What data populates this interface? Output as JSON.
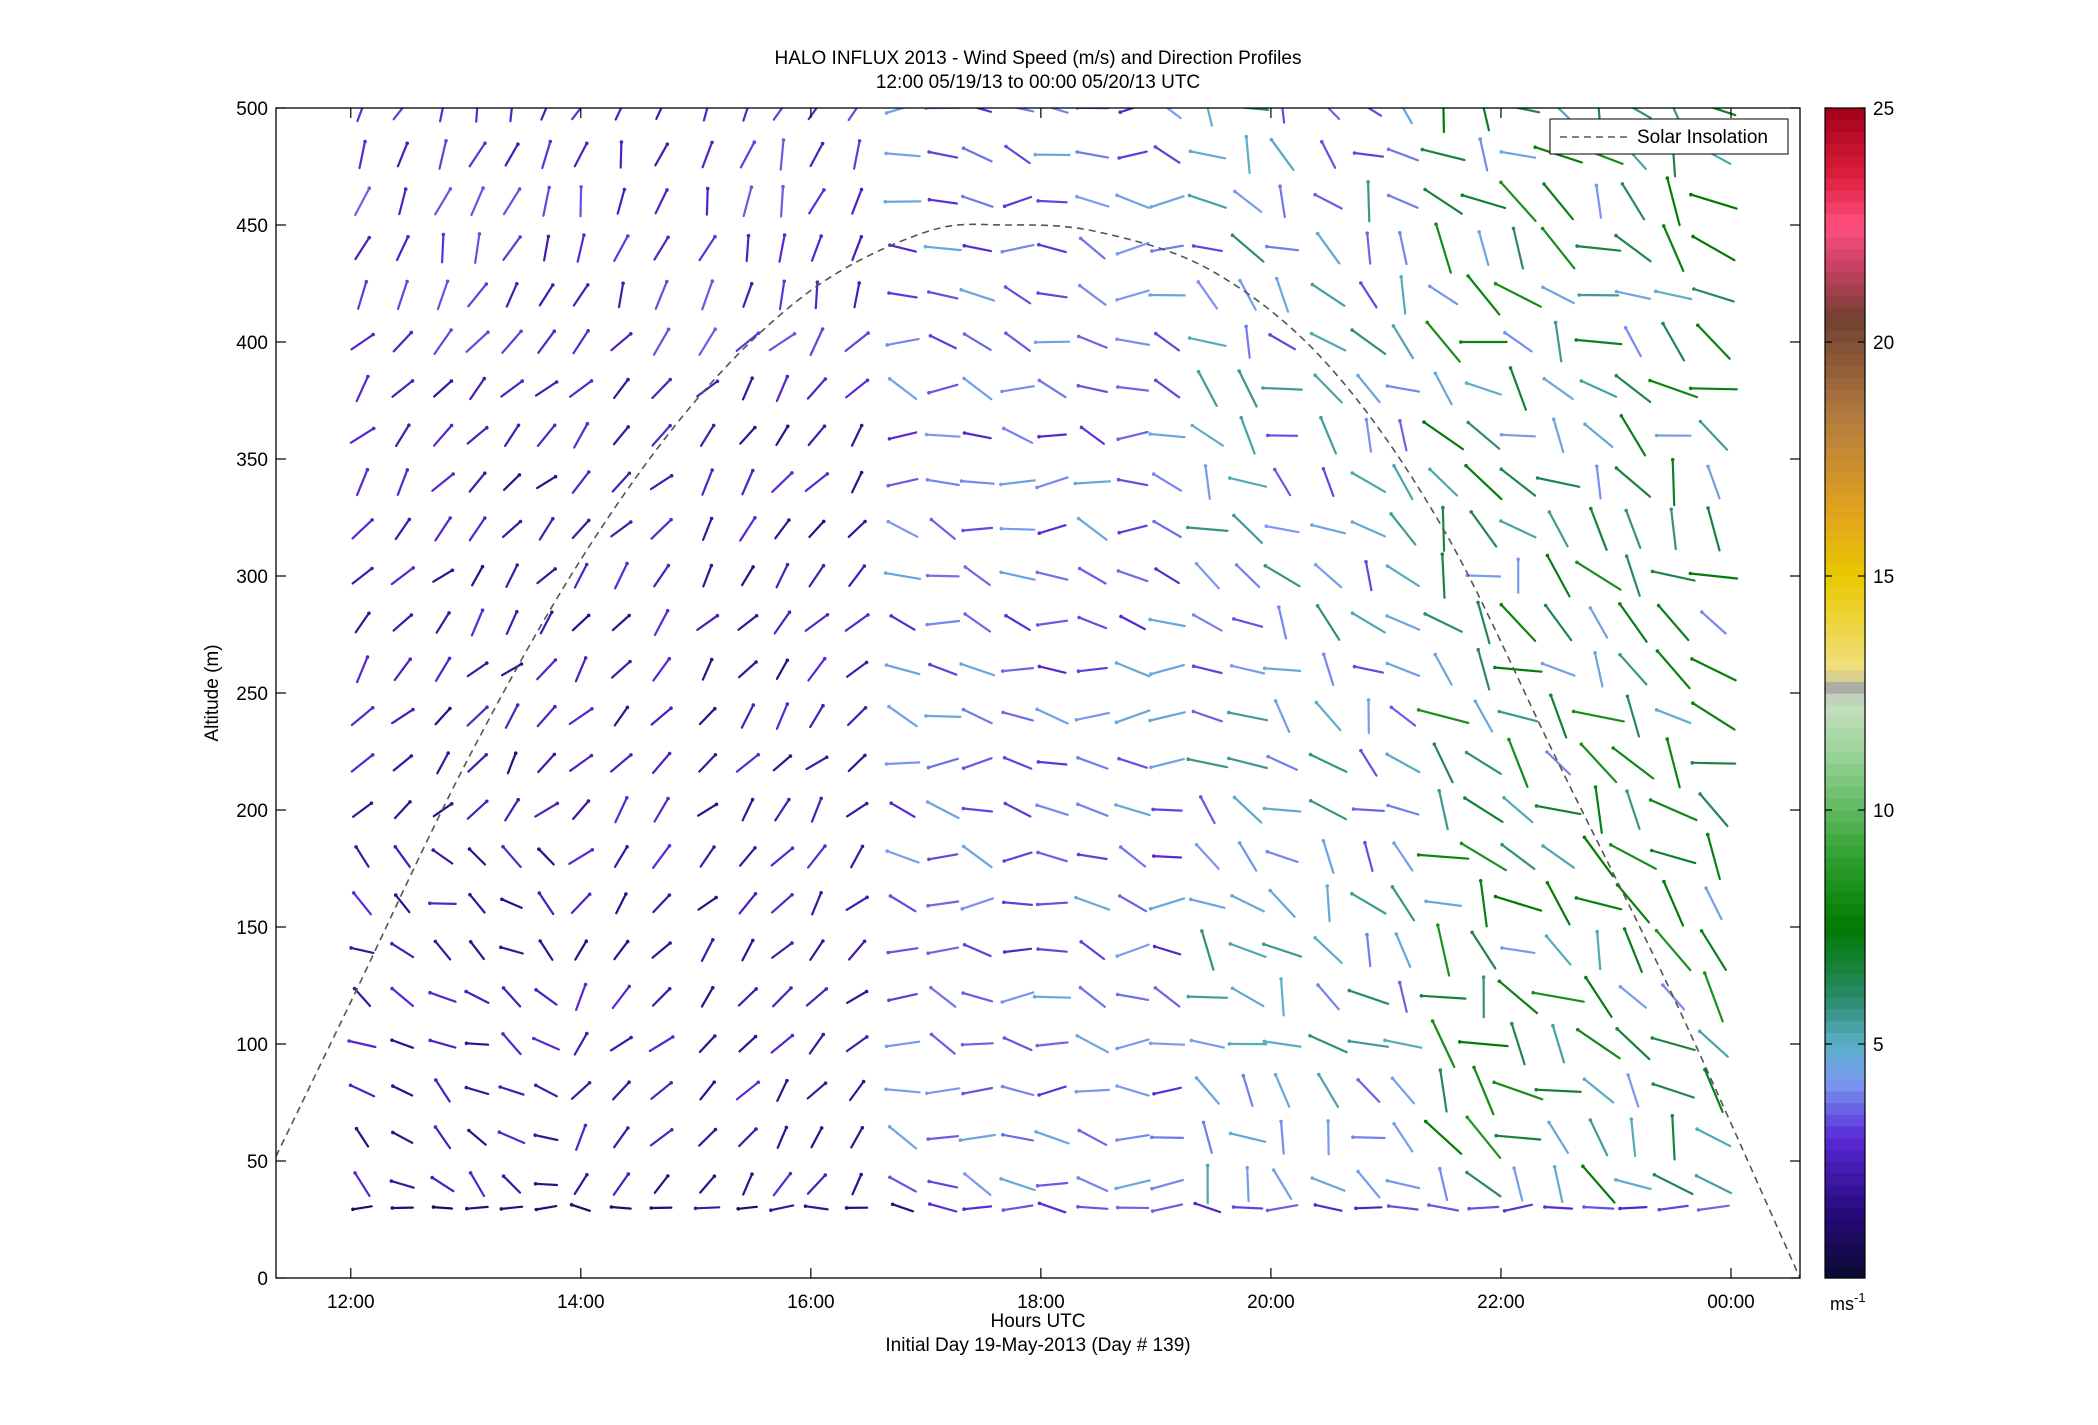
{
  "chart_data": {
    "type": "wind-barb",
    "title": "HALO INFLUX 2013 - Wind Speed (m/s) and Direction Profiles",
    "subtitle": "12:00 05/19/13 to 00:00 05/20/13  UTC",
    "xlabel": "Hours UTC",
    "xlabel2": "Initial Day 19-May-2013 (Day # 139)",
    "ylabel": "Altitude (m)",
    "xlim_hours": [
      11.35,
      24.6
    ],
    "ylim": [
      0,
      500
    ],
    "x_ticks": [
      {
        "value": 12,
        "label": "12:00"
      },
      {
        "value": 14,
        "label": "14:00"
      },
      {
        "value": 16,
        "label": "16:00"
      },
      {
        "value": 18,
        "label": "18:00"
      },
      {
        "value": 20,
        "label": "20:00"
      },
      {
        "value": 22,
        "label": "22:00"
      },
      {
        "value": 24,
        "label": "00:00"
      }
    ],
    "y_ticks": [
      0,
      50,
      100,
      150,
      200,
      250,
      300,
      350,
      400,
      450,
      500
    ],
    "legend": {
      "position": "top-right",
      "entries": [
        {
          "label": "Solar Insolation",
          "style": "dashed",
          "color": "#555555"
        }
      ]
    },
    "colorbar": {
      "min": 0,
      "max": 25,
      "ticks": [
        5,
        10,
        15,
        20,
        25
      ],
      "unit_label": "ms",
      "unit_exponent": "-1",
      "stops": [
        {
          "v": 0,
          "c": "#0a0a30"
        },
        {
          "v": 1.5,
          "c": "#2a0a80"
        },
        {
          "v": 3,
          "c": "#5a2ad8"
        },
        {
          "v": 4.2,
          "c": "#7a9af0"
        },
        {
          "v": 5,
          "c": "#5ab0c8"
        },
        {
          "v": 6,
          "c": "#2a8a6a"
        },
        {
          "v": 7.5,
          "c": "#007a00"
        },
        {
          "v": 9,
          "c": "#30a030"
        },
        {
          "v": 11,
          "c": "#90d090"
        },
        {
          "v": 12.3,
          "c": "#c8e0c0"
        },
        {
          "v": 12.6,
          "c": "#a8a8a8"
        },
        {
          "v": 13,
          "c": "#f0e080"
        },
        {
          "v": 15,
          "c": "#e8c800"
        },
        {
          "v": 16.5,
          "c": "#e0a020"
        },
        {
          "v": 18.5,
          "c": "#b07840"
        },
        {
          "v": 20.5,
          "c": "#704030"
        },
        {
          "v": 21.5,
          "c": "#c04060"
        },
        {
          "v": 22.5,
          "c": "#ff5080"
        },
        {
          "v": 23.5,
          "c": "#e02040"
        },
        {
          "v": 25,
          "c": "#a00018"
        }
      ]
    },
    "solar_insolation": {
      "style": "dashed",
      "points": [
        [
          11.35,
          52
        ],
        [
          12,
          118
        ],
        [
          13,
          220
        ],
        [
          14,
          307
        ],
        [
          15,
          375
        ],
        [
          16,
          422
        ],
        [
          17,
          447
        ],
        [
          17.7,
          450
        ],
        [
          18.5,
          447
        ],
        [
          19.5,
          430
        ],
        [
          20.5,
          390
        ],
        [
          21.5,
          320
        ],
        [
          22.5,
          220
        ],
        [
          23.5,
          120
        ],
        [
          24.6,
          0
        ]
      ]
    },
    "wind_vectors": {
      "times_hours": [
        12.1,
        12.45,
        12.8,
        13.1,
        13.4,
        13.7,
        14.0,
        14.35,
        14.7,
        15.1,
        15.45,
        15.75,
        16.05,
        16.4,
        16.8,
        17.15,
        17.45,
        17.8,
        18.1,
        18.45,
        18.8,
        19.1,
        19.45,
        19.8,
        20.1,
        20.5,
        20.85,
        21.15,
        21.5,
        21.85,
        22.15,
        22.5,
        22.85,
        23.15,
        23.5,
        23.85
      ],
      "altitudes_m": [
        30,
        40,
        60,
        80,
        100,
        120,
        140,
        160,
        180,
        200,
        220,
        240,
        260,
        280,
        300,
        320,
        340,
        360,
        380,
        400,
        420,
        440,
        460,
        480,
        500
      ],
      "note": ""
    }
  }
}
